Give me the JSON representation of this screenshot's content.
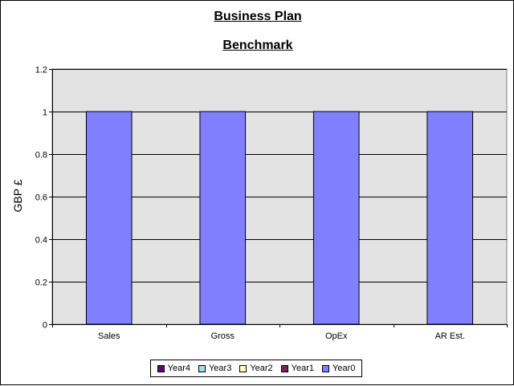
{
  "chart_data": {
    "type": "bar",
    "title": "Business Plan",
    "subtitle": "Benchmark",
    "xlabel": "",
    "ylabel": "GBP £",
    "categories": [
      "Sales",
      "Gross",
      "OpEx",
      "AR Est."
    ],
    "series": [
      {
        "name": "Year0",
        "values": [
          1,
          1,
          1,
          1
        ],
        "color": "#8080ff"
      },
      {
        "name": "Year1",
        "values": [
          0,
          0,
          0,
          0
        ],
        "color": "#802060"
      },
      {
        "name": "Year2",
        "values": [
          0,
          0,
          0,
          0
        ],
        "color": "#ffffc0"
      },
      {
        "name": "Year3",
        "values": [
          0,
          0,
          0,
          0
        ],
        "color": "#a0e0e0"
      },
      {
        "name": "Year4",
        "values": [
          0,
          0,
          0,
          0
        ],
        "color": "#600080"
      }
    ],
    "legend_order": [
      "Year4",
      "Year3",
      "Year2",
      "Year1",
      "Year0"
    ],
    "yticks": [
      "0",
      "0.2",
      "0.4",
      "0.6",
      "0.8",
      "1",
      "1.2"
    ],
    "ylim": [
      0,
      1.2
    ],
    "stacked": true,
    "grid": true,
    "legend_position": "bottom",
    "plot_background": "#e3e3e3"
  }
}
